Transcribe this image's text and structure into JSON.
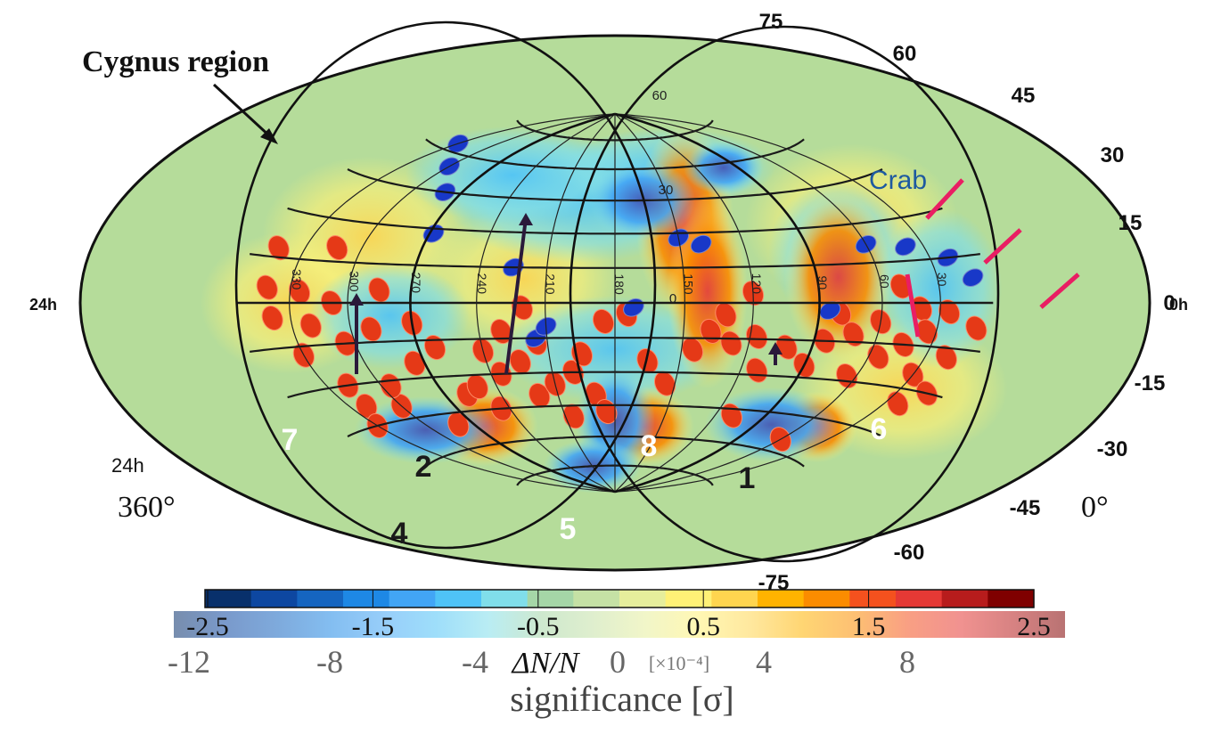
{
  "chart_data": {
    "type": "heatmap",
    "projection": "Hammer-Aitoff all-sky map",
    "annotations": {
      "cygnus": "Cygnus region",
      "crab": "Crab",
      "region_numbers": [
        "1",
        "2",
        "4",
        "5",
        "6",
        "7",
        "8"
      ]
    },
    "ra_labels": {
      "left_mid": "24h",
      "right_mid": "0h",
      "left_low": "24h",
      "left_deg": "360°",
      "right_deg": "0°"
    },
    "inner_ra_ticks": [
      "30",
      "60",
      "90",
      "120",
      "150",
      "180",
      "210",
      "240",
      "270",
      "300",
      "330"
    ],
    "inner_dec_ticks": [
      "60",
      "30",
      "0"
    ],
    "dec_labels": [
      "75",
      "60",
      "45",
      "30",
      "15",
      "0",
      "-15",
      "-30",
      "-45",
      "-60",
      "-75"
    ],
    "colorbar": {
      "colors": [
        "#08306b",
        "#0d47a1",
        "#1565c0",
        "#1e88e5",
        "#42a5f5",
        "#4fc3f7",
        "#80deea",
        "#a5d6a7",
        "#c5e1a5",
        "#e6ee9c",
        "#fff176",
        "#ffd54f",
        "#ffb300",
        "#fb8c00",
        "#f4511e",
        "#e53935",
        "#b71c1c",
        "#7f0000"
      ],
      "dn_ticks": [
        "-2.5",
        "-1.5",
        "-0.5",
        "0.5",
        "1.5",
        "2.5"
      ],
      "dn_range": [
        -2.5,
        2.5
      ],
      "sig_ticks": [
        "-12",
        "-8",
        "-4",
        "0",
        "4",
        "8"
      ],
      "dn_label": "ΔN/N",
      "dn_unit": "[×10⁻⁴]",
      "sig_label": "significance [σ]"
    },
    "sources_red": [
      [
        -165,
        18
      ],
      [
        -163,
        5
      ],
      [
        -160,
        -5
      ],
      [
        -150,
        -18
      ],
      [
        -145,
        4
      ],
      [
        -140,
        -8
      ],
      [
        -138,
        -30
      ],
      [
        -133,
        20
      ],
      [
        -128,
        0
      ],
      [
        -125,
        -15
      ],
      [
        -120,
        -40
      ],
      [
        -115,
        -32
      ],
      [
        -110,
        -10
      ],
      [
        -105,
        5
      ],
      [
        -100,
        -50
      ],
      [
        -95,
        -24
      ],
      [
        -90,
        -8
      ],
      [
        -82,
        -18
      ],
      [
        -78,
        -38
      ],
      [
        -70,
        -35
      ],
      [
        -65,
        -45
      ],
      [
        -60,
        -20
      ],
      [
        -55,
        -30
      ],
      [
        -50,
        -12
      ],
      [
        -44,
        -25
      ],
      [
        -40,
        -40
      ],
      [
        -35,
        -17
      ],
      [
        -30,
        -35
      ],
      [
        -25,
        -50
      ],
      [
        -20,
        -30
      ],
      [
        -15,
        -22
      ],
      [
        -10,
        -40
      ],
      [
        -40,
        -2
      ],
      [
        -5,
        -8
      ],
      [
        5,
        -5
      ],
      [
        15,
        -25
      ],
      [
        25,
        -35
      ],
      [
        35,
        -20
      ],
      [
        42,
        -12
      ],
      [
        48,
        -5
      ],
      [
        52,
        -17
      ],
      [
        60,
        4
      ],
      [
        63,
        -14
      ],
      [
        68,
        -28
      ],
      [
        70,
        -48
      ],
      [
        78,
        -18
      ],
      [
        90,
        -25
      ],
      [
        95,
        -15
      ],
      [
        100,
        -4
      ],
      [
        108,
        -12
      ],
      [
        115,
        -28
      ],
      [
        120,
        -7
      ],
      [
        125,
        -20
      ],
      [
        130,
        6
      ],
      [
        135,
        -15
      ],
      [
        140,
        -2
      ],
      [
        145,
        -10
      ],
      [
        150,
        -25
      ],
      [
        155,
        -3
      ],
      [
        158,
        -35
      ],
      [
        162,
        -18
      ],
      [
        168,
        -30
      ],
      [
        172,
        -8
      ],
      [
        120,
        -55
      ],
      [
        -5,
        -48
      ],
      [
        -140,
        -38
      ],
      [
        -150,
        -45
      ]
    ],
    "sources_blue": [
      [
        -150,
        63
      ],
      [
        -120,
        55
      ],
      [
        -100,
        45
      ],
      [
        -88,
        28
      ],
      [
        -35,
        -15
      ],
      [
        8,
        -2
      ],
      [
        30,
        28
      ],
      [
        40,
        25
      ],
      [
        120,
        22
      ],
      [
        140,
        20
      ],
      [
        160,
        15
      ],
      [
        170,
        8
      ],
      [
        95,
        -3
      ],
      [
        -45,
        15
      ],
      [
        -30,
        -10
      ]
    ]
  }
}
